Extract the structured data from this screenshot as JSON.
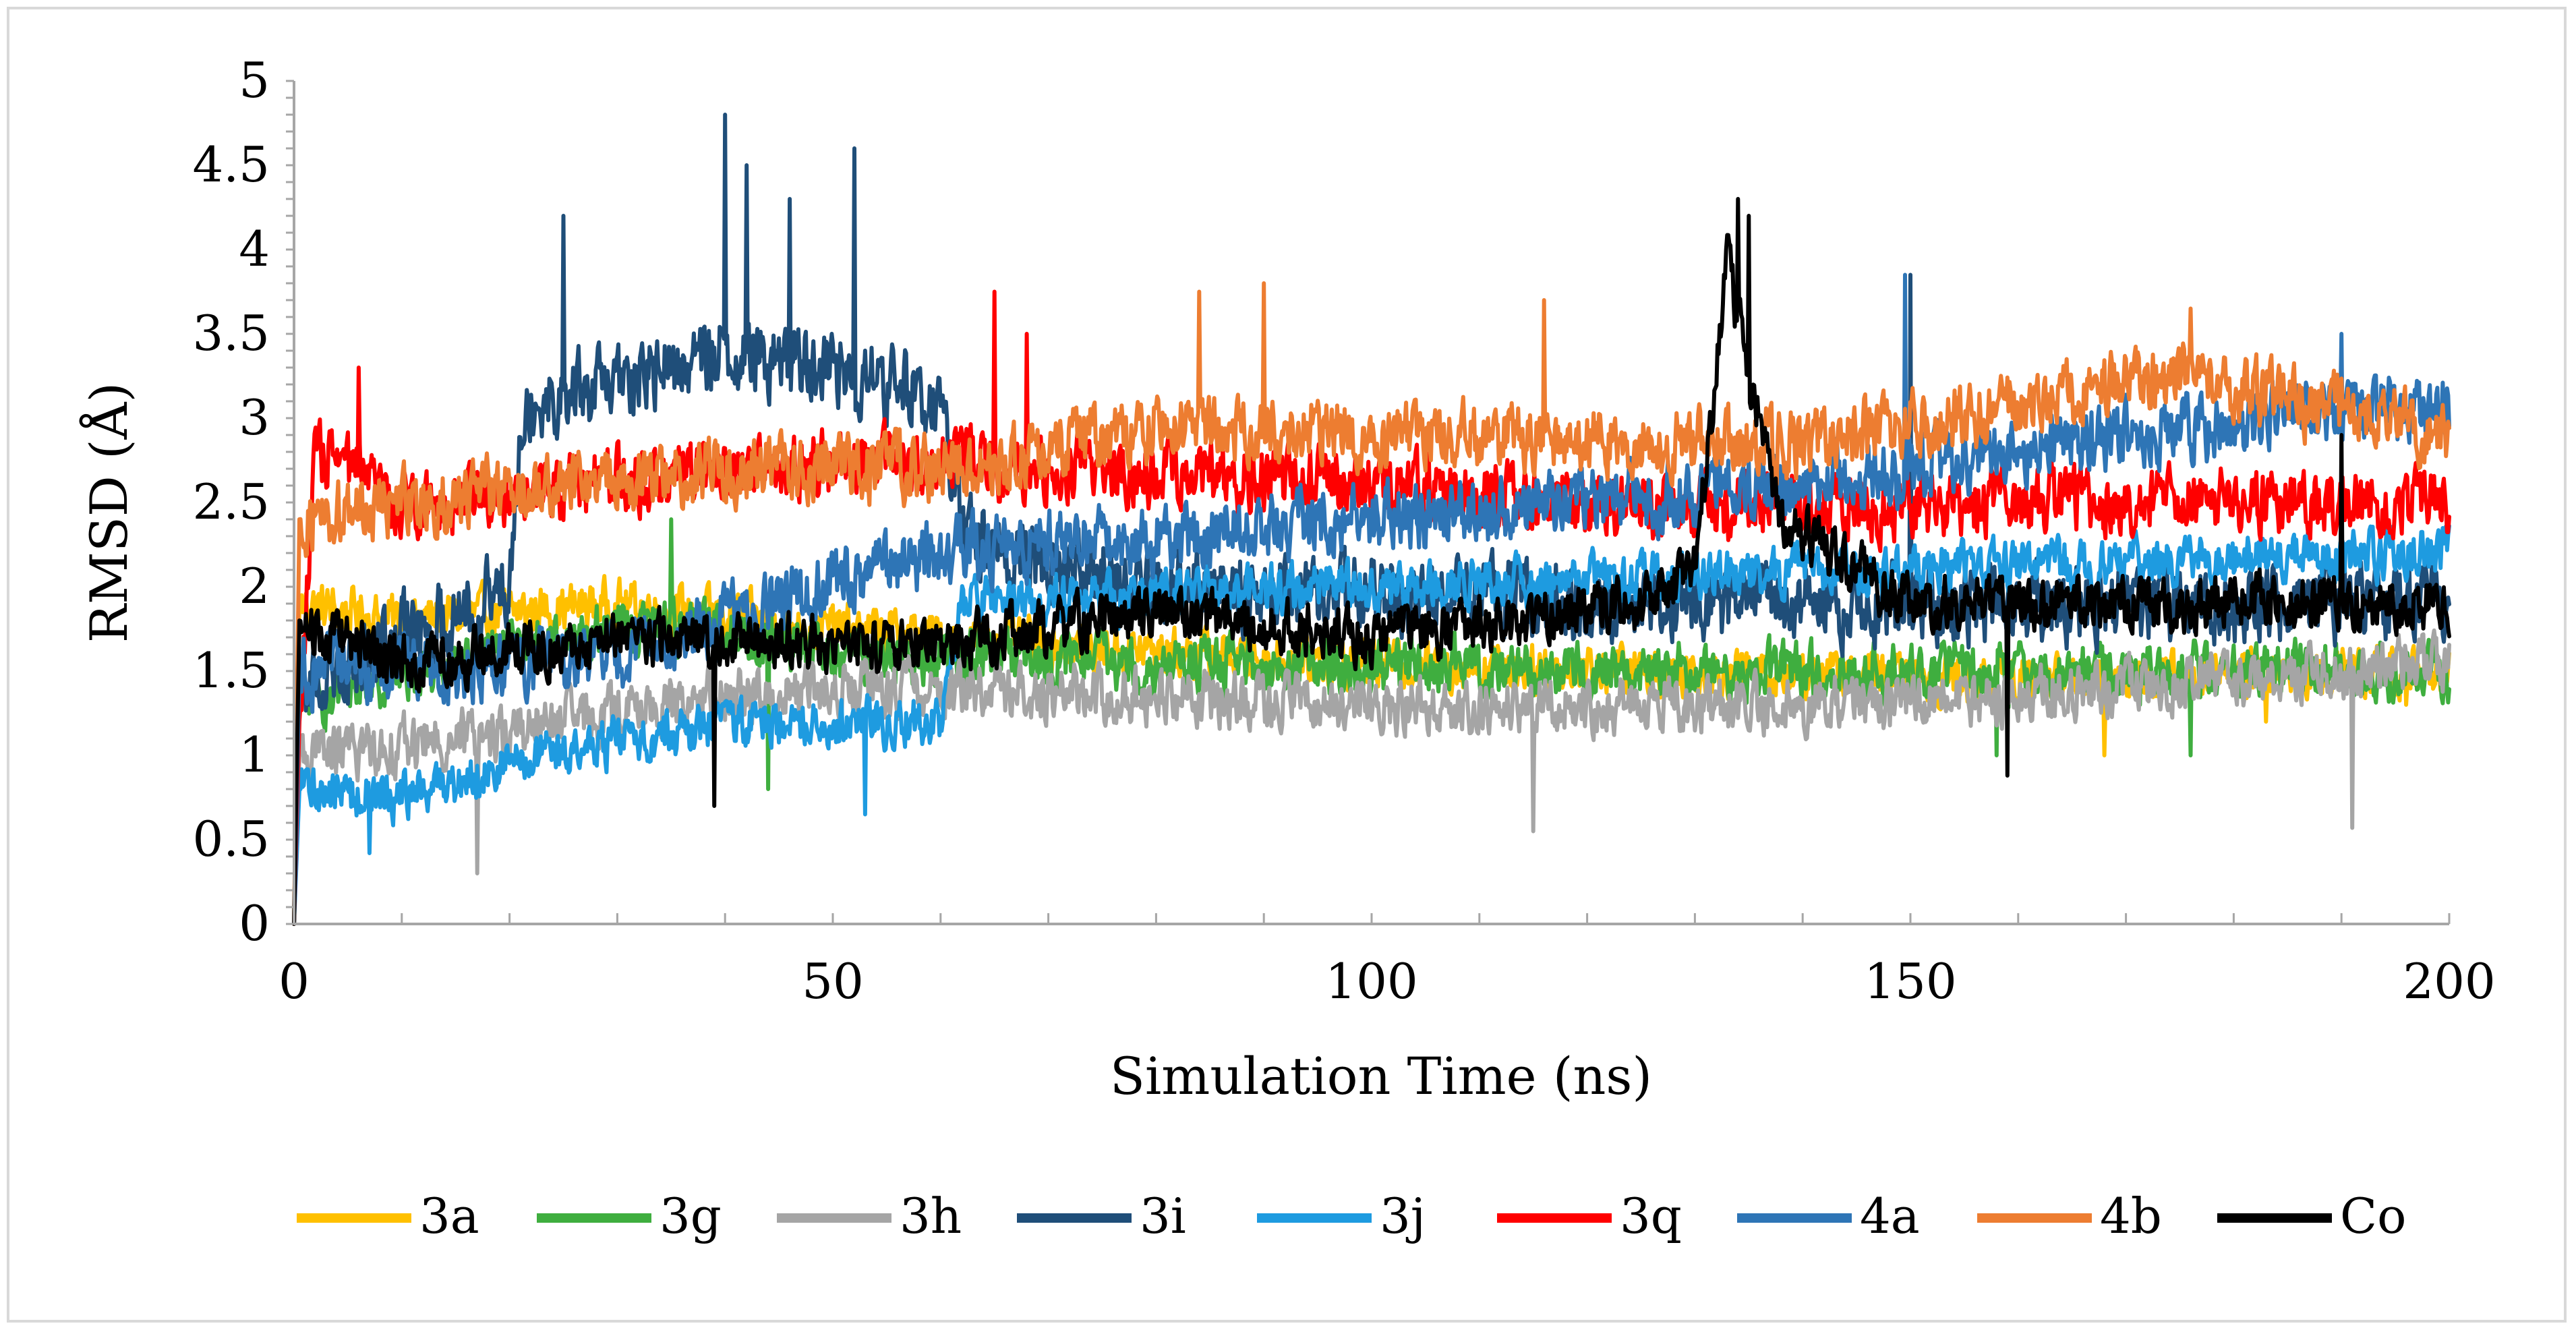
{
  "chart_data": {
    "type": "line",
    "title": "",
    "xlabel": "Simulation Time (ns)",
    "ylabel": "RMSD (Å)",
    "xlim": [
      0,
      200
    ],
    "ylim": [
      0,
      5
    ],
    "x_ticks": [
      "0",
      "50",
      "100",
      "150",
      "200"
    ],
    "y_ticks": [
      "0",
      "0.5",
      "1",
      "1.5",
      "2",
      "2.5",
      "3",
      "3.5",
      "4",
      "4.5",
      "5"
    ],
    "grid": false,
    "legend_position": "bottom",
    "series": [
      {
        "name": "3a",
        "color": "#FFC000",
        "profile": [
          [
            0,
            0
          ],
          [
            0.5,
            1.9
          ],
          [
            10,
            1.8
          ],
          [
            30,
            1.9
          ],
          [
            50,
            1.75
          ],
          [
            70,
            1.65
          ],
          [
            100,
            1.55
          ],
          [
            130,
            1.5
          ],
          [
            160,
            1.45
          ],
          [
            200,
            1.5
          ]
        ],
        "noise": 0.22,
        "spikes": [
          [
            168,
            1.0
          ],
          [
            183,
            1.2
          ],
          [
            196,
            1.3
          ]
        ]
      },
      {
        "name": "3g",
        "color": "#3FAE3F",
        "profile": [
          [
            0,
            0
          ],
          [
            0.5,
            1.3
          ],
          [
            10,
            1.5
          ],
          [
            35,
            1.8
          ],
          [
            50,
            1.6
          ],
          [
            80,
            1.55
          ],
          [
            120,
            1.5
          ],
          [
            160,
            1.5
          ],
          [
            200,
            1.5
          ]
        ],
        "noise": 0.25,
        "spikes": [
          [
            35,
            2.4
          ],
          [
            44,
            0.8
          ],
          [
            158,
            1.0
          ],
          [
            176,
            1.0
          ]
        ]
      },
      {
        "name": "3h",
        "color": "#A5A5A5",
        "profile": [
          [
            0,
            0
          ],
          [
            0.5,
            1.0
          ],
          [
            15,
            1.1
          ],
          [
            40,
            1.35
          ],
          [
            60,
            1.4
          ],
          [
            100,
            1.3
          ],
          [
            140,
            1.3
          ],
          [
            170,
            1.4
          ],
          [
            200,
            1.55
          ]
        ],
        "noise": 0.25,
        "spikes": [
          [
            17,
            0.3
          ],
          [
            115,
            0.55
          ],
          [
            191,
            0.57
          ]
        ]
      },
      {
        "name": "3i",
        "color": "#1F4E79",
        "profile": [
          [
            0,
            0
          ],
          [
            0.5,
            1.4
          ],
          [
            10,
            1.7
          ],
          [
            20,
            2.0
          ],
          [
            21,
            3.1
          ],
          [
            30,
            3.2
          ],
          [
            40,
            3.4
          ],
          [
            50,
            3.3
          ],
          [
            60,
            3.1
          ],
          [
            62,
            2.3
          ],
          [
            80,
            2.0
          ],
          [
            120,
            1.9
          ],
          [
            160,
            1.9
          ],
          [
            200,
            1.9
          ]
        ],
        "noise": 0.35,
        "spikes": [
          [
            25,
            4.2
          ],
          [
            40,
            4.8
          ],
          [
            42,
            4.5
          ],
          [
            46,
            4.3
          ],
          [
            52,
            4.6
          ],
          [
            150,
            3.85
          ]
        ]
      },
      {
        "name": "3j",
        "color": "#1E9BE0",
        "profile": [
          [
            0,
            0
          ],
          [
            0.5,
            0.8
          ],
          [
            10,
            0.75
          ],
          [
            20,
            0.95
          ],
          [
            40,
            1.2
          ],
          [
            60,
            1.2
          ],
          [
            62,
            1.9
          ],
          [
            100,
            2.0
          ],
          [
            150,
            2.1
          ],
          [
            200,
            2.2
          ]
        ],
        "noise": 0.22,
        "spikes": [
          [
            7,
            0.42
          ],
          [
            53,
            0.65
          ]
        ]
      },
      {
        "name": "3q",
        "color": "#FF0000",
        "profile": [
          [
            0,
            0
          ],
          [
            0.5,
            1.2
          ],
          [
            2,
            2.8
          ],
          [
            10,
            2.5
          ],
          [
            40,
            2.7
          ],
          [
            60,
            2.75
          ],
          [
            100,
            2.6
          ],
          [
            130,
            2.45
          ],
          [
            160,
            2.5
          ],
          [
            200,
            2.5
          ]
        ],
        "noise": 0.3,
        "spikes": [
          [
            6,
            3.3
          ],
          [
            65,
            3.75
          ],
          [
            68,
            3.5
          ]
        ]
      },
      {
        "name": "4a",
        "color": "#2E75B6",
        "profile": [
          [
            0,
            0
          ],
          [
            0.5,
            1.5
          ],
          [
            10,
            1.5
          ],
          [
            30,
            1.6
          ],
          [
            60,
            2.2
          ],
          [
            100,
            2.4
          ],
          [
            140,
            2.6
          ],
          [
            170,
            2.9
          ],
          [
            200,
            3.1
          ]
        ],
        "noise": 0.3,
        "spikes": [
          [
            149.5,
            3.85
          ],
          [
            190,
            3.5
          ]
        ]
      },
      {
        "name": "4b",
        "color": "#ED7D31",
        "profile": [
          [
            0,
            0
          ],
          [
            0.5,
            2.4
          ],
          [
            10,
            2.5
          ],
          [
            40,
            2.7
          ],
          [
            60,
            2.7
          ],
          [
            80,
            2.95
          ],
          [
            100,
            2.9
          ],
          [
            140,
            2.85
          ],
          [
            175,
            3.25
          ],
          [
            200,
            2.9
          ]
        ],
        "noise": 0.3,
        "spikes": [
          [
            84,
            3.75
          ],
          [
            90,
            3.8
          ],
          [
            116,
            3.7
          ],
          [
            176,
            3.65
          ]
        ]
      },
      {
        "name": "Co",
        "color": "#000000",
        "profile": [
          [
            0,
            0
          ],
          [
            0.5,
            1.8
          ],
          [
            10,
            1.55
          ],
          [
            30,
            1.7
          ],
          [
            60,
            1.65
          ],
          [
            80,
            1.85
          ],
          [
            100,
            1.7
          ],
          [
            125,
            1.9
          ],
          [
            130,
            2.1
          ],
          [
            133,
            3.9
          ],
          [
            138,
            2.4
          ],
          [
            150,
            1.9
          ],
          [
            200,
            1.9
          ]
        ],
        "noise": 0.25,
        "spikes": [
          [
            134,
            4.3
          ],
          [
            135,
            4.2
          ],
          [
            39,
            0.7
          ],
          [
            159,
            0.88
          ],
          [
            190,
            2.9
          ]
        ]
      }
    ]
  }
}
